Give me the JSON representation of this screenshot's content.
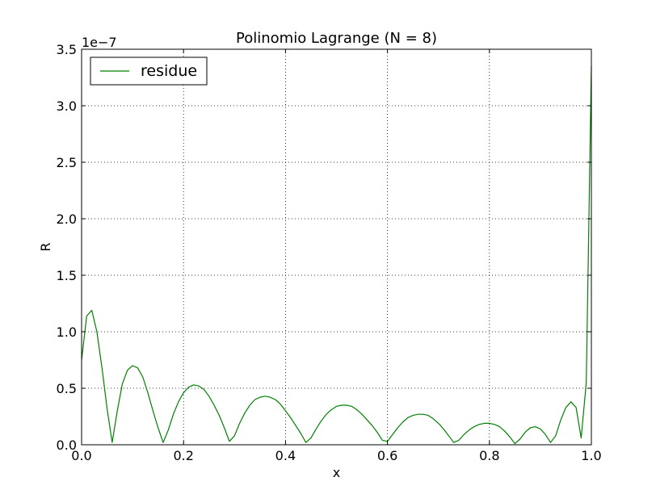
{
  "chart_data": {
    "type": "line",
    "title": "Polinomio Lagrange (N = 8)",
    "xlabel": "x",
    "ylabel": "R",
    "y_scale_label": "1e−7",
    "xlim": [
      0.0,
      1.0
    ],
    "ylim": [
      0.0,
      3.5
    ],
    "x_ticks": [
      0.0,
      0.2,
      0.4,
      0.6,
      0.8,
      1.0
    ],
    "x_tick_labels": [
      "0.0",
      "0.2",
      "0.4",
      "0.6",
      "0.8",
      "1.0"
    ],
    "y_ticks": [
      0.0,
      0.5,
      1.0,
      1.5,
      2.0,
      2.5,
      3.0,
      3.5
    ],
    "y_tick_labels": [
      "0.0",
      "0.5",
      "1.0",
      "1.5",
      "2.0",
      "2.5",
      "3.0",
      "3.5"
    ],
    "grid": true,
    "legend_position": "top-left",
    "series": [
      {
        "name": "residue",
        "color": "#008000",
        "x": [
          0.0,
          0.01,
          0.02,
          0.03,
          0.04,
          0.05,
          0.06,
          0.07,
          0.08,
          0.09,
          0.1,
          0.11,
          0.12,
          0.13,
          0.14,
          0.15,
          0.16,
          0.17,
          0.18,
          0.19,
          0.2,
          0.21,
          0.22,
          0.23,
          0.24,
          0.25,
          0.26,
          0.27,
          0.28,
          0.29,
          0.3,
          0.31,
          0.32,
          0.33,
          0.34,
          0.35,
          0.36,
          0.37,
          0.38,
          0.39,
          0.4,
          0.41,
          0.42,
          0.43,
          0.44,
          0.45,
          0.46,
          0.47,
          0.48,
          0.49,
          0.5,
          0.51,
          0.52,
          0.53,
          0.54,
          0.55,
          0.56,
          0.57,
          0.58,
          0.59,
          0.6,
          0.61,
          0.62,
          0.63,
          0.64,
          0.65,
          0.66,
          0.67,
          0.68,
          0.69,
          0.7,
          0.71,
          0.72,
          0.73,
          0.74,
          0.75,
          0.76,
          0.77,
          0.78,
          0.79,
          0.8,
          0.81,
          0.82,
          0.83,
          0.84,
          0.85,
          0.86,
          0.87,
          0.88,
          0.89,
          0.9,
          0.91,
          0.92,
          0.93,
          0.94,
          0.95,
          0.96,
          0.97,
          0.98,
          0.99,
          1.0
        ],
        "y": [
          0.75,
          1.14,
          1.19,
          1.0,
          0.68,
          0.32,
          0.02,
          0.3,
          0.54,
          0.66,
          0.7,
          0.68,
          0.6,
          0.46,
          0.3,
          0.15,
          0.02,
          0.13,
          0.27,
          0.38,
          0.46,
          0.51,
          0.53,
          0.52,
          0.49,
          0.43,
          0.35,
          0.26,
          0.15,
          0.03,
          0.08,
          0.19,
          0.28,
          0.35,
          0.4,
          0.42,
          0.43,
          0.42,
          0.4,
          0.36,
          0.3,
          0.24,
          0.17,
          0.1,
          0.02,
          0.06,
          0.14,
          0.21,
          0.27,
          0.31,
          0.34,
          0.35,
          0.35,
          0.34,
          0.31,
          0.27,
          0.22,
          0.17,
          0.11,
          0.04,
          0.03,
          0.09,
          0.15,
          0.2,
          0.24,
          0.26,
          0.27,
          0.27,
          0.26,
          0.23,
          0.19,
          0.14,
          0.08,
          0.02,
          0.04,
          0.09,
          0.13,
          0.16,
          0.18,
          0.19,
          0.19,
          0.18,
          0.16,
          0.12,
          0.07,
          0.01,
          0.05,
          0.11,
          0.15,
          0.16,
          0.14,
          0.09,
          0.02,
          0.08,
          0.22,
          0.33,
          0.38,
          0.33,
          0.06,
          0.55,
          3.35
        ]
      }
    ]
  }
}
